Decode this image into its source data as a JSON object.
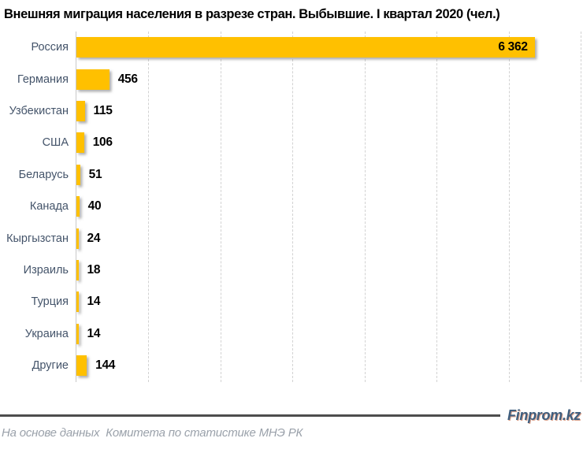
{
  "chart_data": {
    "type": "bar",
    "orientation": "horizontal",
    "title": "Внешняя миграция населения в разрезе стран. Выбывшие. I квартал 2020 (чел.)",
    "categories": [
      "Россия",
      "Германия",
      "Узбекистан",
      "США",
      "Беларусь",
      "Канада",
      "Кыргызстан",
      "Израиль",
      "Турция",
      "Украина",
      "Другие"
    ],
    "values": [
      6362,
      456,
      115,
      106,
      51,
      40,
      24,
      18,
      14,
      14,
      144
    ],
    "value_labels": [
      "6 362",
      "456",
      "115",
      "106",
      "51",
      "40",
      "24",
      "18",
      "14",
      "14",
      "144"
    ],
    "value_label_placement": [
      "inside",
      "outside",
      "outside",
      "outside",
      "outside",
      "outside",
      "outside",
      "outside",
      "outside",
      "outside",
      "outside"
    ],
    "xlabel": "",
    "ylabel": "",
    "xlim": [
      0,
      7000
    ],
    "gridline_step": 1000,
    "grid": true,
    "legend": false,
    "bar_color": "#FFC000",
    "category_label_color": "#44546A",
    "value_label_color": "#000000"
  },
  "footer": {
    "brand": "Finprom.kz",
    "brand_color": "#3F5E7E",
    "source": "На основе данных  Комитета по статистике МНЭ РК"
  }
}
